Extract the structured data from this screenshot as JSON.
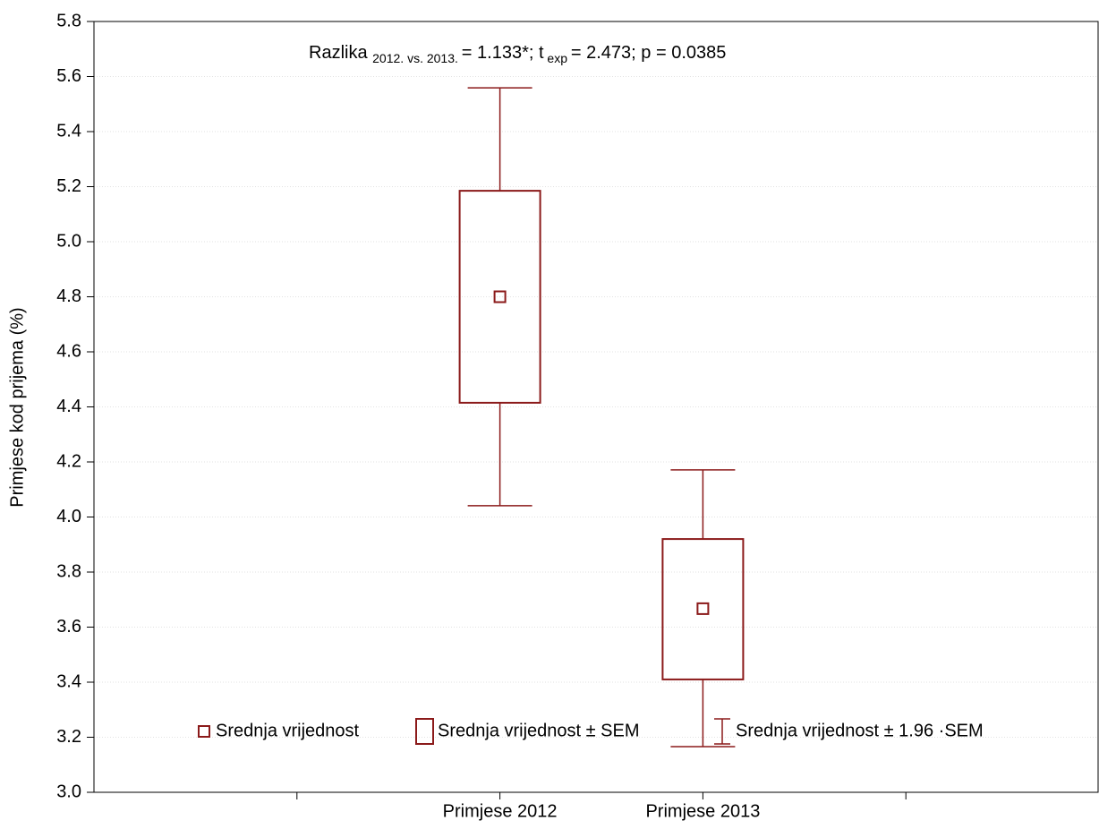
{
  "chart_data": {
    "type": "box",
    "annotation": [
      "Razlika",
      "2012. vs. 2013.",
      "= 1.133*; t",
      "exp",
      "= 2.473; p = 0.0385"
    ],
    "y_label": "Primjese kod prijema (%)",
    "categories": [
      null,
      "Primjese 2012",
      "Primjese 2013",
      null
    ],
    "color": "#8b1a1a",
    "series": [
      {
        "name": "Srednja vrijednost",
        "values": [
          null,
          4.8,
          3.667,
          null
        ]
      },
      {
        "name": "Srednja vrijednost ± SEM",
        "low": [
          null,
          4.415,
          3.41,
          null
        ],
        "high": [
          null,
          5.185,
          3.92,
          null
        ]
      },
      {
        "name": "Srednja vrijednost ± 1.96 ·SEM",
        "low": [
          null,
          4.041,
          3.166,
          null
        ],
        "high": [
          null,
          5.559,
          4.171,
          null
        ]
      }
    ],
    "ylim": [
      3.0,
      5.8
    ],
    "yticks": [
      {
        "value": 3,
        "label": "3.0"
      },
      3.2,
      3.4,
      3.6,
      3.8,
      {
        "value": 4,
        "label": "4.0"
      },
      4.2,
      4.4,
      4.6,
      4.8,
      {
        "value": 5,
        "label": "5.0"
      },
      5.2,
      5.4,
      5.6,
      5.8
    ],
    "grid": true,
    "legend": "bottom"
  }
}
